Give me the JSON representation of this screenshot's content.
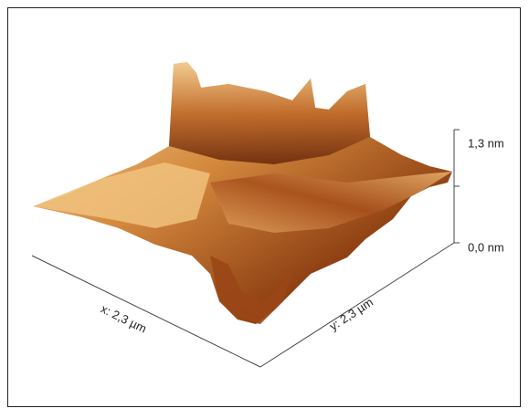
{
  "axes": {
    "x_label": "x: 2,3 µm",
    "y_label": "y: 2,3 µm",
    "z_ticks": [
      "1,3 nm",
      "0,0 nm"
    ]
  }
}
